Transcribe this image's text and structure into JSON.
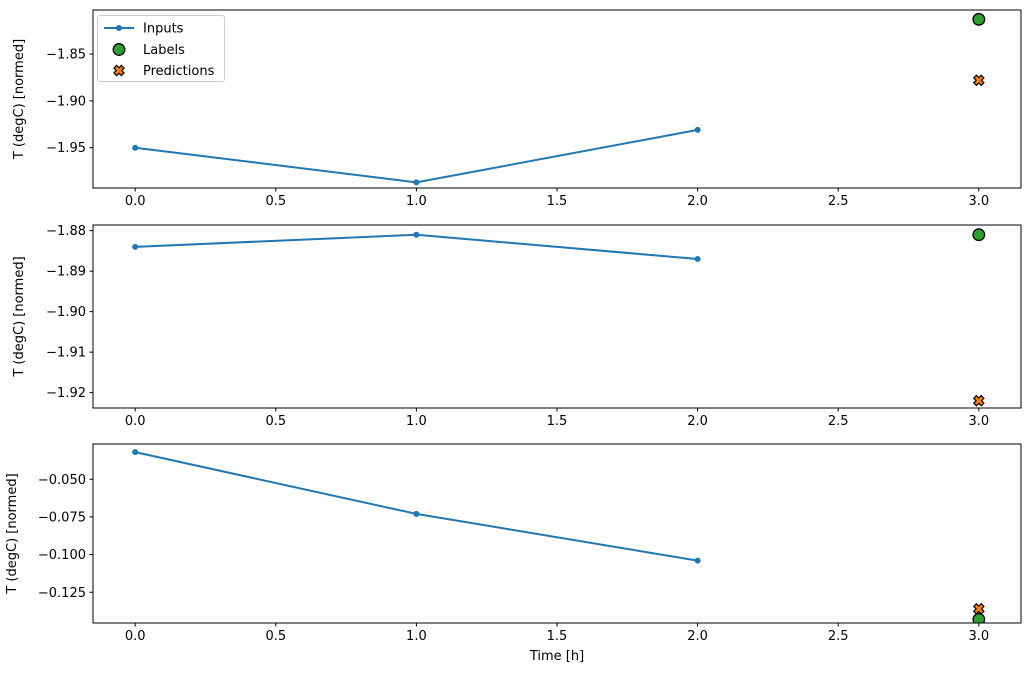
{
  "figure": {
    "xlabel": "Time [h]",
    "ylabel": "T (degC) [normed]",
    "legend": {
      "items": [
        {
          "label": "Inputs",
          "marker": "line-dot",
          "color": "#1f77b4"
        },
        {
          "label": "Labels",
          "marker": "circle",
          "color": "#2ca02c",
          "edgecolor": "#000000"
        },
        {
          "label": "Predictions",
          "marker": "X",
          "color": "#ff7f0e",
          "edgecolor": "#000000"
        }
      ]
    }
  },
  "chart_data": [
    {
      "type": "line",
      "ylabel": "T (degC) [normed]",
      "xlabel": "",
      "show_legend": true,
      "xlim": [
        -0.15,
        3.15
      ],
      "ylim": [
        -1.993,
        -1.803
      ],
      "xticks": [
        0,
        0.5,
        1,
        1.5,
        2,
        2.5,
        3
      ],
      "xtick_labels": [
        "0.0",
        "0.5",
        "1.0",
        "1.5",
        "2.0",
        "2.5",
        "3.0"
      ],
      "yticks": [
        -1.85,
        -1.9,
        -1.95
      ],
      "ytick_labels": [
        "−1.85",
        "−1.90",
        "−1.95"
      ],
      "series": [
        {
          "name": "Inputs",
          "plot": "line",
          "marker": "dot",
          "color": "#1f77b4",
          "x": [
            0,
            1,
            2
          ],
          "y": [
            -1.95,
            -1.987,
            -1.931
          ]
        },
        {
          "name": "Labels",
          "plot": "scatter",
          "marker": "circle",
          "color": "#2ca02c",
          "edgecolor": "#000000",
          "x": [
            3
          ],
          "y": [
            -1.813
          ]
        },
        {
          "name": "Predictions",
          "plot": "scatter",
          "marker": "X",
          "color": "#ff7f0e",
          "edgecolor": "#000000",
          "x": [
            3
          ],
          "y": [
            -1.878
          ]
        }
      ]
    },
    {
      "type": "line",
      "ylabel": "T (degC) [normed]",
      "xlabel": "",
      "show_legend": false,
      "xlim": [
        -0.15,
        3.15
      ],
      "ylim": [
        -1.9238,
        -1.8786
      ],
      "xticks": [
        0,
        0.5,
        1,
        1.5,
        2,
        2.5,
        3
      ],
      "xtick_labels": [
        "0.0",
        "0.5",
        "1.0",
        "1.5",
        "2.0",
        "2.5",
        "3.0"
      ],
      "yticks": [
        -1.88,
        -1.89,
        -1.9,
        -1.91,
        -1.92
      ],
      "ytick_labels": [
        "−1.88",
        "−1.89",
        "−1.90",
        "−1.91",
        "−1.92"
      ],
      "series": [
        {
          "name": "Inputs",
          "plot": "line",
          "marker": "dot",
          "color": "#1f77b4",
          "x": [
            0,
            1,
            2
          ],
          "y": [
            -1.884,
            -1.881,
            -1.887
          ]
        },
        {
          "name": "Labels",
          "plot": "scatter",
          "marker": "circle",
          "color": "#2ca02c",
          "edgecolor": "#000000",
          "x": [
            3
          ],
          "y": [
            -1.881
          ]
        },
        {
          "name": "Predictions",
          "plot": "scatter",
          "marker": "X",
          "color": "#ff7f0e",
          "edgecolor": "#000000",
          "x": [
            3
          ],
          "y": [
            -1.922
          ]
        }
      ]
    },
    {
      "type": "line",
      "ylabel": "T (degC) [normed]",
      "xlabel": "Time [h]",
      "show_legend": false,
      "xlim": [
        -0.15,
        3.15
      ],
      "ylim": [
        -0.1454,
        -0.0266
      ],
      "xticks": [
        0,
        0.5,
        1,
        1.5,
        2,
        2.5,
        3
      ],
      "xtick_labels": [
        "0.0",
        "0.5",
        "1.0",
        "1.5",
        "2.0",
        "2.5",
        "3.0"
      ],
      "yticks": [
        -0.05,
        -0.075,
        -0.1,
        -0.125
      ],
      "ytick_labels": [
        "−0.050",
        "−0.075",
        "−0.100",
        "−0.125"
      ],
      "series": [
        {
          "name": "Inputs",
          "plot": "line",
          "marker": "dot",
          "color": "#1f77b4",
          "x": [
            0,
            1,
            2
          ],
          "y": [
            -0.032,
            -0.073,
            -0.104
          ]
        },
        {
          "name": "Labels",
          "plot": "scatter",
          "marker": "circle",
          "color": "#2ca02c",
          "edgecolor": "#000000",
          "x": [
            3
          ],
          "y": [
            -0.143
          ]
        },
        {
          "name": "Predictions",
          "plot": "scatter",
          "marker": "X",
          "color": "#ff7f0e",
          "edgecolor": "#000000",
          "x": [
            3
          ],
          "y": [
            -0.136
          ]
        }
      ]
    }
  ]
}
